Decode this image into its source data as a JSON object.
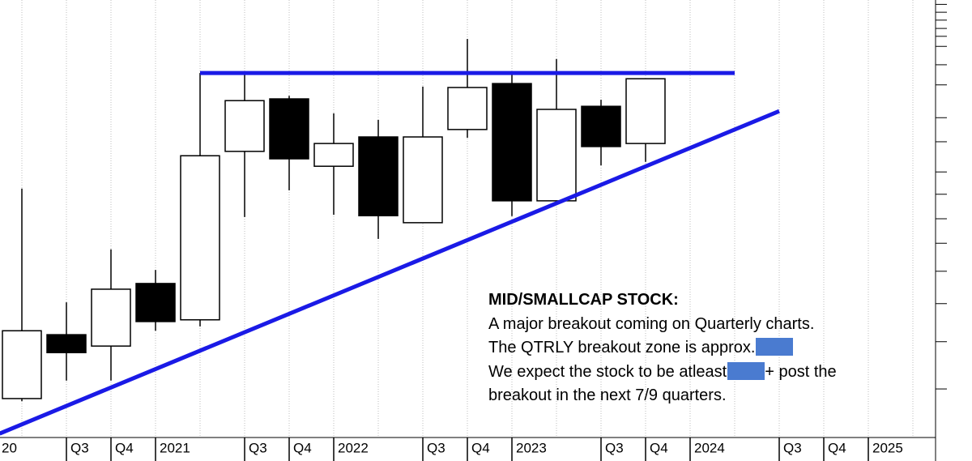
{
  "chart_data": {
    "type": "candlestick",
    "categories": [
      "20",
      null,
      "Q3",
      "Q4",
      "2021",
      null,
      "Q3",
      "Q4",
      "2022",
      null,
      "Q3",
      "Q4",
      "2023",
      null,
      "Q3",
      "Q4",
      "2024",
      null,
      "Q3",
      "Q4",
      "2025",
      null
    ],
    "open": [
      null,
      8.9,
      23.5,
      20.9,
      35.2,
      26.9,
      65.4,
      77.4,
      62.0,
      68.7,
      49.1,
      70.4,
      80.9,
      54.1,
      75.7,
      67.2,
      null,
      null,
      null,
      null,
      null,
      null
    ],
    "high": [
      null,
      56.9,
      30.9,
      43.0,
      38.3,
      83.3,
      83.3,
      78.1,
      74.1,
      72.6,
      80.2,
      91.1,
      83.3,
      86.5,
      77.2,
      82.0,
      null,
      null,
      null,
      null,
      null,
      null
    ],
    "low": [
      null,
      8.3,
      13.0,
      13.0,
      24.4,
      25.4,
      50.4,
      56.5,
      50.9,
      45.4,
      49.1,
      68.5,
      50.6,
      54.1,
      62.2,
      63.0,
      null,
      null,
      null,
      null,
      null,
      null
    ],
    "close": [
      null,
      24.4,
      19.4,
      33.9,
      26.5,
      64.4,
      77.0,
      63.7,
      67.2,
      50.7,
      68.7,
      80.0,
      54.1,
      75.0,
      66.5,
      82.0,
      null,
      null,
      null,
      null,
      null,
      null
    ],
    "up_color": "#ffffff",
    "down_color": "#000000",
    "ylim": [
      0,
      100
    ],
    "yticks": [
      99,
      97.2,
      95.4,
      93.5,
      91.7,
      89.4,
      85.2,
      80.6,
      73.1,
      67.6,
      60.7,
      55.6,
      50,
      44.4,
      38,
      30.6,
      21.9,
      11.1
    ],
    "grid": true,
    "trendlines": [
      {
        "color": "#1a1ae6",
        "x": [
          5,
          17
        ],
        "y": [
          83.3,
          83.3
        ]
      },
      {
        "color": "#1a1ae6",
        "x": [
          0.5,
          18
        ],
        "y": [
          0.9,
          74.6
        ]
      }
    ],
    "annotation": {
      "title": "MID/SMALLCAP STOCK:",
      "line1": "A major breakout coming on Quarterly charts.",
      "line2": "The QTRLY breakout zone is approx.",
      "line3a": "We expect the stock to be atleast",
      "line3b": "+ post the",
      "line4": "breakout in the next 7/9 quarters."
    }
  }
}
